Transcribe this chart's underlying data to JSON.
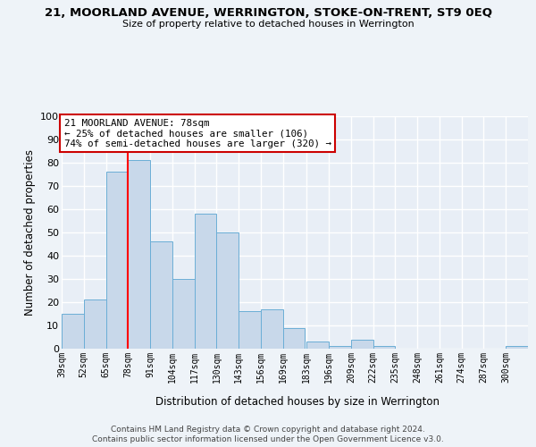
{
  "title": "21, MOORLAND AVENUE, WERRINGTON, STOKE-ON-TRENT, ST9 0EQ",
  "subtitle": "Size of property relative to detached houses in Werrington",
  "xlabel": "Distribution of detached houses by size in Werrington",
  "ylabel": "Number of detached properties",
  "bins": [
    39,
    52,
    65,
    78,
    91,
    104,
    117,
    130,
    143,
    156,
    169,
    183,
    196,
    209,
    222,
    235,
    248,
    261,
    274,
    287,
    300
  ],
  "bin_labels": [
    "39sqm",
    "52sqm",
    "65sqm",
    "78sqm",
    "91sqm",
    "104sqm",
    "117sqm",
    "130sqm",
    "143sqm",
    "156sqm",
    "169sqm",
    "183sqm",
    "196sqm",
    "209sqm",
    "222sqm",
    "235sqm",
    "248sqm",
    "261sqm",
    "274sqm",
    "287sqm",
    "300sqm"
  ],
  "counts": [
    15,
    21,
    76,
    81,
    46,
    30,
    58,
    50,
    16,
    17,
    9,
    3,
    1,
    4,
    1,
    0,
    0,
    0,
    0,
    0,
    1
  ],
  "bar_color": "#c8d8ea",
  "bar_edge_color": "#6baed6",
  "red_line_x": 78,
  "ylim": [
    0,
    100
  ],
  "yticks": [
    0,
    10,
    20,
    30,
    40,
    50,
    60,
    70,
    80,
    90,
    100
  ],
  "annotation_title": "21 MOORLAND AVENUE: 78sqm",
  "annotation_line1": "← 25% of detached houses are smaller (106)",
  "annotation_line2": "74% of semi-detached houses are larger (320) →",
  "annotation_box_color": "#ffffff",
  "annotation_border_color": "#cc0000",
  "footer1": "Contains HM Land Registry data © Crown copyright and database right 2024.",
  "footer2": "Contains public sector information licensed under the Open Government Licence v3.0.",
  "background_color": "#eef3f8",
  "plot_bg_color": "#e8eef6"
}
